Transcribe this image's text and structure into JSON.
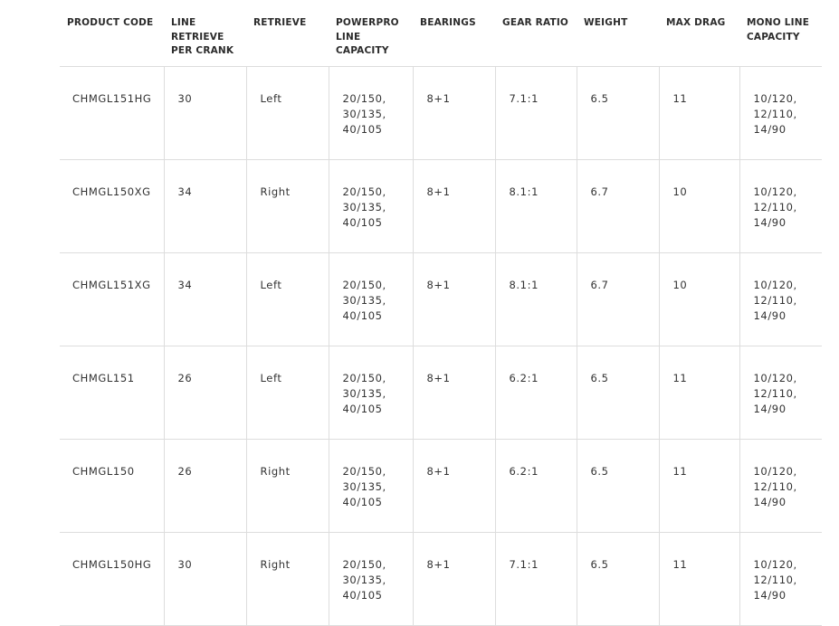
{
  "table": {
    "headers": [
      "PRODUCT CODE",
      "LINE RETRIEVE PER CRANK",
      "RETRIEVE",
      "POWERPRO LINE CAPACITY",
      "BEARINGS",
      "GEAR RATIO",
      "WEIGHT",
      "MAX DRAG",
      "MONO LINE CAPACITY"
    ],
    "rows": [
      [
        "CHMGL151HG",
        "30",
        "Left",
        "20/150,\n30/135,\n40/105",
        "8+1",
        "7.1:1",
        "6.5",
        "11",
        "10/120,\n12/110,\n14/90"
      ],
      [
        "CHMGL150XG",
        "34",
        "Right",
        "20/150,\n30/135,\n40/105",
        "8+1",
        "8.1:1",
        "6.7",
        "10",
        "10/120,\n12/110,\n14/90"
      ],
      [
        "CHMGL151XG",
        "34",
        "Left",
        "20/150,\n30/135,\n40/105",
        "8+1",
        "8.1:1",
        "6.7",
        "10",
        "10/120,\n12/110,\n14/90"
      ],
      [
        "CHMGL151",
        "26",
        "Left",
        "20/150,\n30/135,\n40/105",
        "8+1",
        "6.2:1",
        "6.5",
        "11",
        "10/120,\n12/110,\n14/90"
      ],
      [
        "CHMGL150",
        "26",
        "Right",
        "20/150,\n30/135,\n40/105",
        "8+1",
        "6.2:1",
        "6.5",
        "11",
        "10/120,\n12/110,\n14/90"
      ],
      [
        "CHMGL150HG",
        "30",
        "Right",
        "20/150,\n30/135,\n40/105",
        "8+1",
        "7.1:1",
        "6.5",
        "11",
        "10/120,\n12/110,\n14/90"
      ]
    ]
  }
}
